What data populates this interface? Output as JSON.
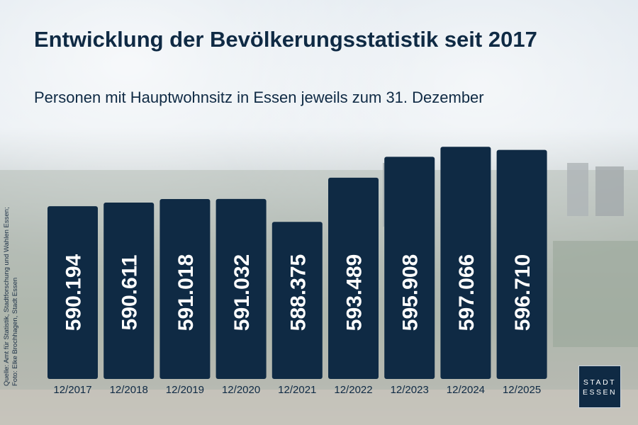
{
  "header": {
    "title": "Entwicklung der Bevölkerungsstatistik seit 2017",
    "subtitle": "Personen mit Hauptwohnsitz in Essen jeweils zum 31. Dezember"
  },
  "source": {
    "line1": "Quelle: Amt für Statistik, Stadtforschung und Wahlen Essen;",
    "line2": "Foto: Elke Brochhagen, Stadt Essen"
  },
  "logo": {
    "line1": "STADT",
    "line2": "ESSEN"
  },
  "colors": {
    "bar": "#0f2a44",
    "text": "#0f2a44",
    "label": "#ffffff"
  },
  "chart_data": {
    "type": "bar",
    "title": "Entwicklung der Bevölkerungsstatistik seit 2017",
    "subtitle": "Personen mit Hauptwohnsitz in Essen jeweils zum 31. Dezember",
    "categories": [
      "12/2017",
      "12/2018",
      "12/2019",
      "12/2020",
      "12/2021",
      "12/2022",
      "12/2023",
      "12/2024",
      "12/2025"
    ],
    "values": [
      590194,
      590611,
      591018,
      591032,
      588375,
      593489,
      595908,
      597066,
      596710
    ],
    "value_labels": [
      "590.194",
      "590.611",
      "591.018",
      "591.032",
      "588.375",
      "593.489",
      "595.908",
      "597.066",
      "596.710"
    ],
    "grid": false,
    "legend": "none"
  }
}
